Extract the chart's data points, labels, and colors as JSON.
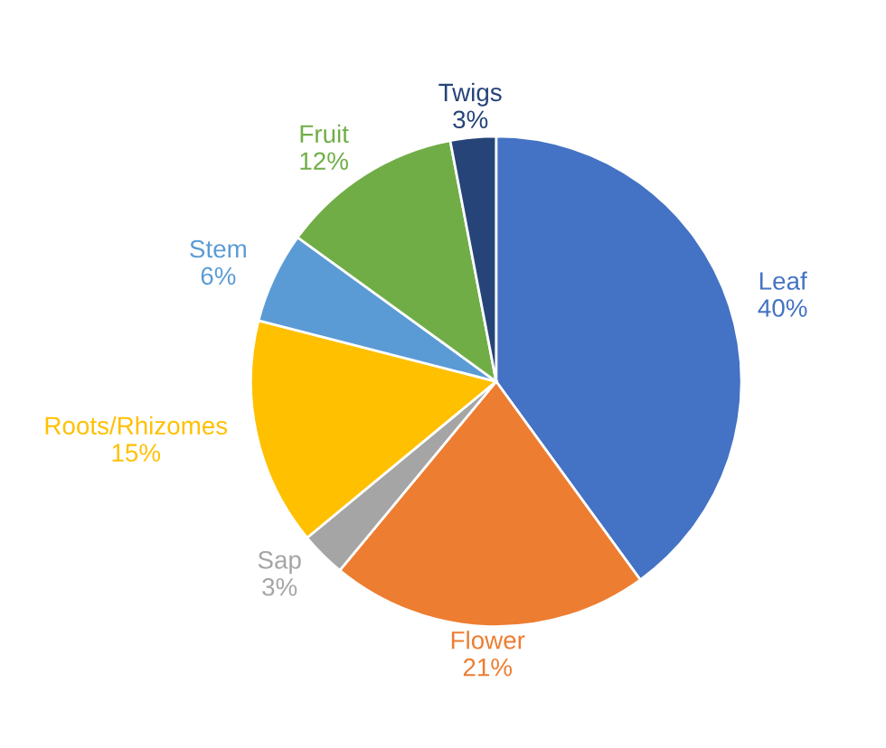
{
  "chart_data": {
    "type": "pie",
    "categories": [
      "Leaf",
      "Flower",
      "Sap",
      "Roots/Rhizomes",
      "Stem",
      "Fruit",
      "Twigs"
    ],
    "values": [
      40,
      21,
      3,
      15,
      6,
      12,
      3
    ],
    "value_labels": [
      "40%",
      "21%",
      "3%",
      "15%",
      "6%",
      "12%",
      "3%"
    ],
    "colors": [
      "#4472c4",
      "#ed7d31",
      "#a5a5a5",
      "#ffc000",
      "#5b9bd5",
      "#70ad47",
      "#264478"
    ],
    "legend": false
  }
}
